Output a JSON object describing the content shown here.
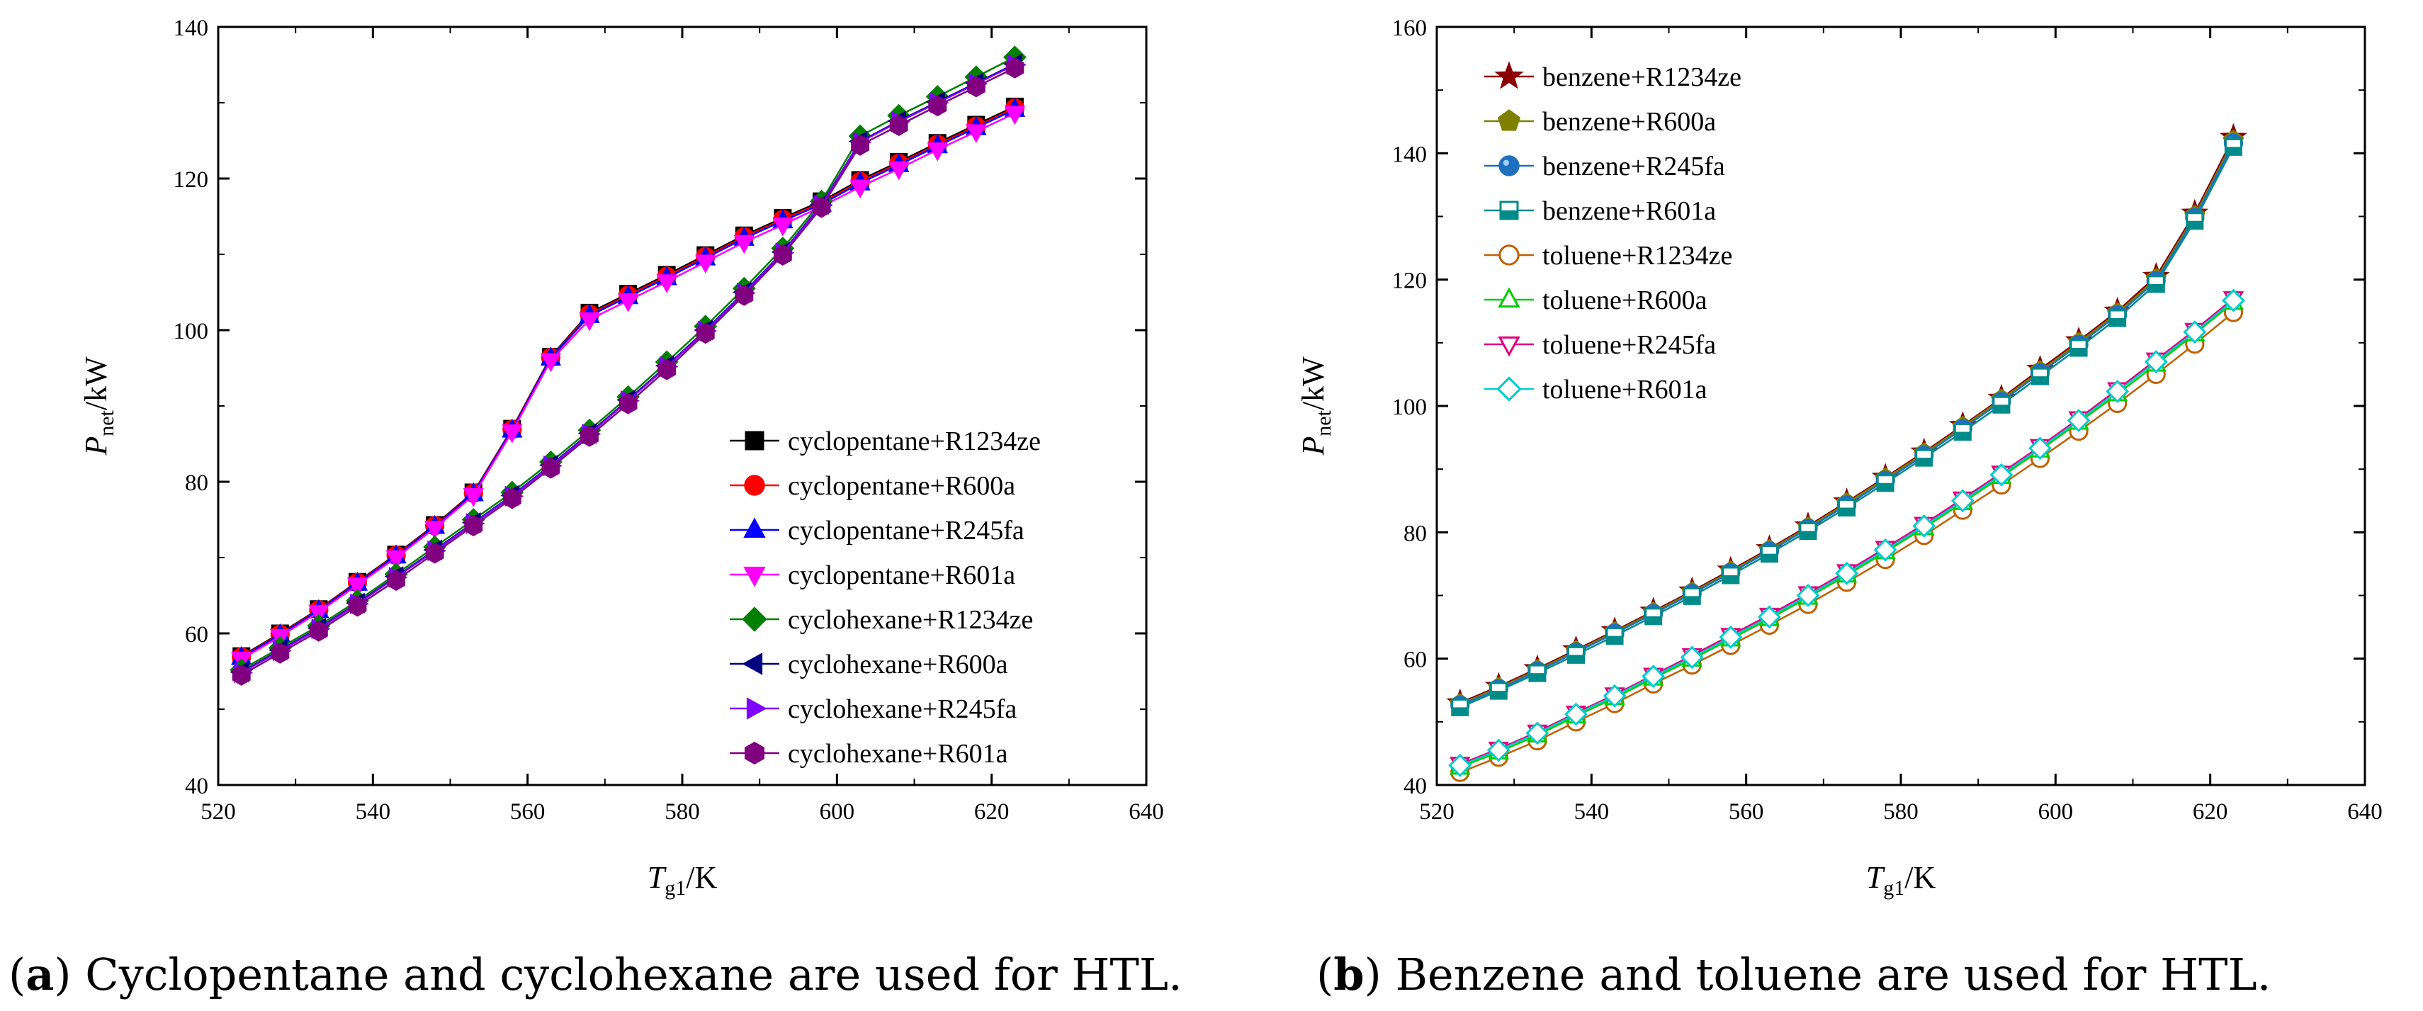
{
  "chart_data": [
    {
      "type": "line",
      "panel": "a",
      "xlabel": {
        "symbol": "T",
        "subscript": "g1",
        "unit": "/K"
      },
      "ylabel": {
        "symbol": "P",
        "subscript": "net",
        "unit": "/kW"
      },
      "xlim": [
        520,
        640
      ],
      "ylim": [
        40,
        140
      ],
      "xticks": [
        520,
        540,
        560,
        580,
        600,
        620,
        640
      ],
      "yticks": [
        40,
        60,
        80,
        100,
        120,
        140
      ],
      "legend_position": "bottom-right",
      "caption_label": "(a)",
      "caption_text": " Cyclopentane and cyclohexane are used for HTL.",
      "x": [
        523,
        528,
        533,
        538,
        543,
        548,
        553,
        558,
        563,
        568,
        573,
        578,
        583,
        588,
        593,
        598,
        603,
        608,
        613,
        618,
        623
      ],
      "series": [
        {
          "name": "cyclopentane+R1234ze",
          "color": "#000000",
          "marker": "square",
          "filled": true,
          "values": [
            57.0,
            60.0,
            63.2,
            66.8,
            70.4,
            74.3,
            78.6,
            87.0,
            96.5,
            102.3,
            104.8,
            107.3,
            109.9,
            112.5,
            114.8,
            117.0,
            119.8,
            122.2,
            124.7,
            127.1,
            129.5
          ]
        },
        {
          "name": "cyclopentane+R600a",
          "color": "#ff0000",
          "marker": "circle",
          "filled": true,
          "values": [
            56.9,
            59.9,
            63.1,
            66.7,
            70.3,
            74.2,
            78.5,
            86.9,
            96.4,
            102.1,
            104.6,
            107.1,
            109.7,
            112.3,
            114.6,
            116.8,
            119.6,
            122.0,
            124.5,
            126.9,
            129.3
          ]
        },
        {
          "name": "cyclopentane+R245fa",
          "color": "#0000ff",
          "marker": "triangle-up",
          "filled": true,
          "values": [
            56.8,
            59.8,
            63.0,
            66.6,
            70.2,
            74.1,
            78.4,
            86.8,
            96.3,
            101.9,
            104.4,
            106.9,
            109.5,
            112.1,
            114.4,
            116.6,
            119.4,
            121.8,
            124.3,
            126.7,
            129.1
          ]
        },
        {
          "name": "cyclopentane+R601a",
          "color": "#ff00ff",
          "marker": "triangle-down",
          "filled": true,
          "values": [
            56.6,
            59.6,
            62.8,
            66.4,
            70.0,
            73.9,
            78.2,
            86.6,
            96.0,
            101.4,
            103.9,
            106.4,
            109.0,
            111.6,
            113.9,
            116.3,
            118.9,
            121.3,
            123.8,
            126.2,
            128.6
          ]
        },
        {
          "name": "cyclohexane+R1234ze",
          "color": "#008000",
          "marker": "diamond",
          "filled": true,
          "values": [
            55.2,
            58.1,
            61.0,
            64.3,
            67.8,
            71.4,
            75.0,
            78.6,
            82.6,
            86.8,
            91.2,
            95.8,
            100.5,
            105.5,
            110.8,
            117.0,
            125.6,
            128.3,
            130.8,
            133.4,
            136.0
          ]
        },
        {
          "name": "cyclohexane+R600a",
          "color": "#000080",
          "marker": "triangle-left",
          "filled": true,
          "values": [
            54.9,
            57.8,
            60.7,
            64.0,
            67.5,
            71.0,
            74.6,
            78.2,
            82.2,
            86.4,
            90.8,
            95.3,
            100.0,
            105.0,
            110.3,
            116.6,
            124.9,
            127.6,
            130.1,
            132.6,
            135.1
          ]
        },
        {
          "name": "cyclohexane+R245fa",
          "color": "#8000ff",
          "marker": "triangle-right",
          "filled": true,
          "values": [
            54.8,
            57.7,
            60.6,
            63.9,
            67.4,
            70.9,
            74.5,
            78.1,
            82.1,
            86.3,
            90.7,
            95.2,
            99.9,
            104.9,
            110.2,
            116.5,
            124.8,
            127.5,
            130.0,
            132.5,
            135.0
          ]
        },
        {
          "name": "cyclohexane+R601a",
          "color": "#800080",
          "marker": "hexagon",
          "filled": true,
          "values": [
            54.5,
            57.4,
            60.3,
            63.6,
            67.0,
            70.6,
            74.2,
            77.8,
            81.8,
            86.0,
            90.3,
            94.8,
            99.6,
            104.6,
            109.9,
            116.2,
            124.4,
            127.0,
            129.6,
            132.1,
            134.6
          ]
        }
      ]
    },
    {
      "type": "line",
      "panel": "b",
      "xlabel": {
        "symbol": "T",
        "subscript": "g1",
        "unit": "/K"
      },
      "ylabel": {
        "symbol": "P",
        "subscript": "net",
        "unit": "/kW"
      },
      "xlim": [
        520,
        640
      ],
      "ylim": [
        40,
        160
      ],
      "xticks": [
        520,
        540,
        560,
        580,
        600,
        620,
        640
      ],
      "yticks": [
        40,
        60,
        80,
        100,
        120,
        140,
        160
      ],
      "legend_position": "top-left",
      "caption_label": "(b)",
      "caption_text": " Benzene and toluene are used for HTL.",
      "x": [
        523,
        528,
        533,
        538,
        543,
        548,
        553,
        558,
        563,
        568,
        573,
        578,
        583,
        588,
        593,
        598,
        603,
        608,
        613,
        618,
        623
      ],
      "series": [
        {
          "name": "benzene+R1234ze",
          "color": "#8b0000",
          "marker": "star",
          "filled": true,
          "values": [
            53.0,
            55.6,
            58.4,
            61.4,
            64.4,
            67.5,
            70.7,
            74.0,
            77.4,
            81.0,
            84.8,
            88.7,
            92.7,
            96.9,
            101.2,
            105.8,
            110.3,
            115.0,
            120.5,
            130.5,
            142.5
          ]
        },
        {
          "name": "benzene+R600a",
          "color": "#808000",
          "marker": "pentagon",
          "filled": true,
          "values": [
            52.8,
            55.4,
            58.2,
            61.2,
            64.2,
            67.3,
            70.5,
            73.8,
            77.2,
            80.8,
            84.6,
            88.5,
            92.5,
            96.7,
            101.0,
            105.5,
            110.0,
            114.7,
            120.1,
            130.1,
            142.0
          ]
        },
        {
          "name": "benzene+R245fa",
          "color": "#1f6fbf",
          "marker": "sphere",
          "filled": true,
          "values": [
            52.6,
            55.2,
            58.0,
            61.0,
            64.0,
            67.1,
            70.3,
            73.6,
            77.0,
            80.6,
            84.3,
            88.2,
            92.2,
            96.4,
            100.7,
            105.2,
            109.7,
            114.4,
            119.8,
            129.8,
            141.6
          ]
        },
        {
          "name": "benzene+R601a",
          "color": "#008b8b",
          "marker": "half-square",
          "filled": false,
          "values": [
            52.3,
            54.9,
            57.7,
            60.6,
            63.6,
            66.7,
            69.9,
            73.2,
            76.6,
            80.2,
            83.9,
            87.8,
            91.8,
            95.9,
            100.2,
            104.7,
            109.2,
            113.9,
            119.3,
            129.3,
            141.0
          ]
        },
        {
          "name": "toluene+R1234ze",
          "color": "#c06000",
          "marker": "circle",
          "filled": false,
          "values": [
            42.0,
            44.4,
            47.0,
            50.0,
            52.9,
            56.0,
            59.0,
            62.1,
            65.3,
            68.6,
            72.1,
            75.7,
            79.5,
            83.5,
            87.5,
            91.7,
            96.0,
            100.4,
            105.0,
            109.8,
            114.8
          ]
        },
        {
          "name": "toluene+R600a",
          "color": "#00cc00",
          "marker": "triangle-up",
          "filled": false,
          "values": [
            42.8,
            45.2,
            47.9,
            50.9,
            53.8,
            56.9,
            59.9,
            63.1,
            66.3,
            69.7,
            73.2,
            76.9,
            80.7,
            84.7,
            88.8,
            93.0,
            97.4,
            101.9,
            106.6,
            111.4,
            116.4
          ]
        },
        {
          "name": "toluene+R245fa",
          "color": "#e0007f",
          "marker": "triangle-down",
          "filled": false,
          "values": [
            43.3,
            45.7,
            48.4,
            51.4,
            54.3,
            57.4,
            60.5,
            63.7,
            66.9,
            70.3,
            73.8,
            77.5,
            81.3,
            85.3,
            89.4,
            93.6,
            98.0,
            102.6,
            107.3,
            112.0,
            117.0
          ]
        },
        {
          "name": "toluene+R601a",
          "color": "#00cccc",
          "marker": "diamond",
          "filled": false,
          "values": [
            43.1,
            45.5,
            48.2,
            51.2,
            54.1,
            57.2,
            60.2,
            63.4,
            66.6,
            70.0,
            73.5,
            77.2,
            81.0,
            85.0,
            89.1,
            93.3,
            97.7,
            102.3,
            107.0,
            111.7,
            116.7
          ]
        }
      ]
    }
  ]
}
